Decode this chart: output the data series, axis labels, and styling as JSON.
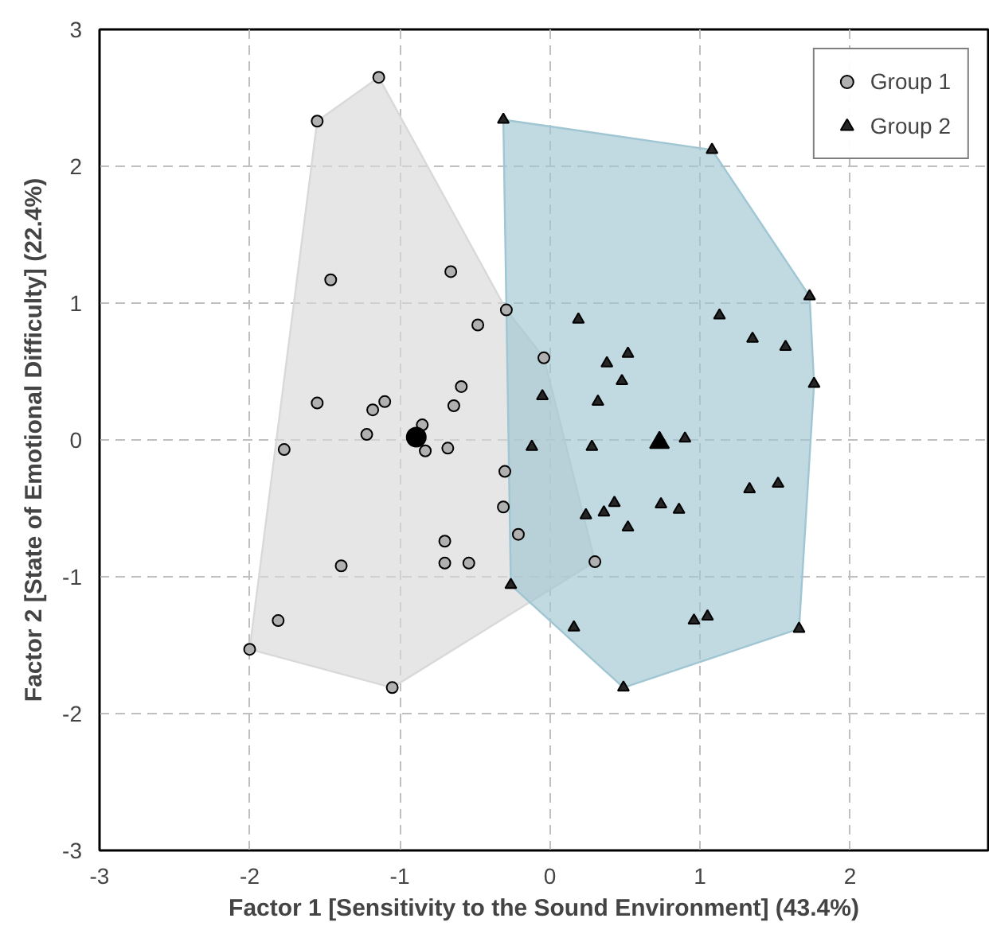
{
  "chart_data": {
    "type": "scatter",
    "xlabel": "Factor 1 [Sensitivity to the Sound Environment] (43.4%)",
    "ylabel": "Factor 2 [State of Emotional Difficulty] (22.4%)",
    "xlim": [
      -3,
      2.92
    ],
    "ylim": [
      -3,
      3
    ],
    "xticks": [
      -3,
      -2,
      -1,
      0,
      1,
      2
    ],
    "yticks": [
      -3,
      -2,
      -1,
      0,
      1,
      2,
      3
    ],
    "grid": true,
    "legend": "top right",
    "series": [
      {
        "type": "area",
        "color": "#d9d9d9",
        "x": [
          -1.14,
          -0.29,
          -0.04,
          0.3,
          -1.05,
          -2.0,
          -1.55
        ],
        "values": [
          2.65,
          0.95,
          0.6,
          -0.89,
          -1.81,
          -1.53,
          2.33
        ]
      },
      {
        "type": "area",
        "color": "#9fc6d2",
        "x": [
          -0.31,
          1.08,
          1.73,
          1.76,
          1.66,
          0.49,
          -0.26
        ],
        "values": [
          2.34,
          2.12,
          1.05,
          0.41,
          -1.38,
          -1.81,
          -1.06
        ]
      },
      {
        "name": "Group 1",
        "color": "#b0b0b0",
        "marker": "circle",
        "x": [
          -1.14,
          -1.55,
          -1.46,
          -0.66,
          -0.29,
          -0.48,
          -0.04,
          -0.59,
          -1.55,
          -1.1,
          -1.18,
          -0.64,
          -0.85,
          -1.22,
          -1.77,
          -0.83,
          -0.68,
          -0.3,
          -0.31,
          -0.21,
          -0.7,
          0.3,
          -0.7,
          -0.54,
          -1.39,
          -1.81,
          -2.0,
          -1.05
        ],
        "values": [
          2.65,
          2.33,
          1.17,
          1.23,
          0.95,
          0.84,
          0.6,
          0.39,
          0.27,
          0.28,
          0.22,
          0.25,
          0.11,
          0.04,
          -0.07,
          -0.08,
          -0.06,
          -0.23,
          -0.49,
          -0.69,
          -0.74,
          -0.89,
          -0.9,
          -0.9,
          -0.92,
          -1.32,
          -1.53,
          -1.81
        ]
      },
      {
        "name": "Group 2",
        "color": "#262626",
        "marker": "triangle",
        "x": [
          -0.31,
          1.08,
          1.73,
          1.13,
          0.19,
          1.35,
          1.57,
          0.52,
          0.38,
          1.76,
          0.48,
          -0.05,
          0.32,
          -0.12,
          0.28,
          0.9,
          1.33,
          1.52,
          0.24,
          0.36,
          0.43,
          0.74,
          0.86,
          0.52,
          -0.26,
          0.16,
          0.96,
          1.05,
          1.66,
          0.49
        ],
        "values": [
          2.34,
          2.12,
          1.05,
          0.91,
          0.88,
          0.74,
          0.68,
          0.63,
          0.56,
          0.41,
          0.43,
          0.32,
          0.28,
          -0.05,
          -0.05,
          0.01,
          -0.36,
          -0.32,
          -0.55,
          -0.53,
          -0.46,
          -0.47,
          -0.51,
          -0.64,
          -1.06,
          -1.37,
          -1.32,
          -1.29,
          -1.38,
          -1.81
        ]
      },
      {
        "color": "#000000",
        "marker": "circle",
        "x": [
          -0.89
        ],
        "values": [
          0.02
        ]
      },
      {
        "color": "#000000",
        "marker": "triangle",
        "x": [
          0.73
        ],
        "values": [
          -0.02
        ]
      }
    ]
  }
}
